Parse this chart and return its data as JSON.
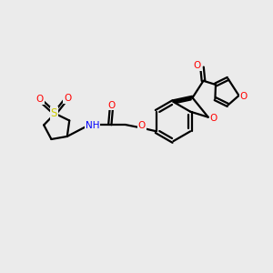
{
  "background_color": "#ebebeb",
  "atom_colors": {
    "O": "#ff0000",
    "N": "#0000ff",
    "S": "#cccc00",
    "C": "#000000",
    "H": "#555555"
  },
  "bond_color": "#000000",
  "bond_width": 1.6,
  "figsize": [
    3.0,
    3.0
  ],
  "dpi": 100,
  "xlim": [
    0,
    10
  ],
  "ylim": [
    0,
    10
  ]
}
